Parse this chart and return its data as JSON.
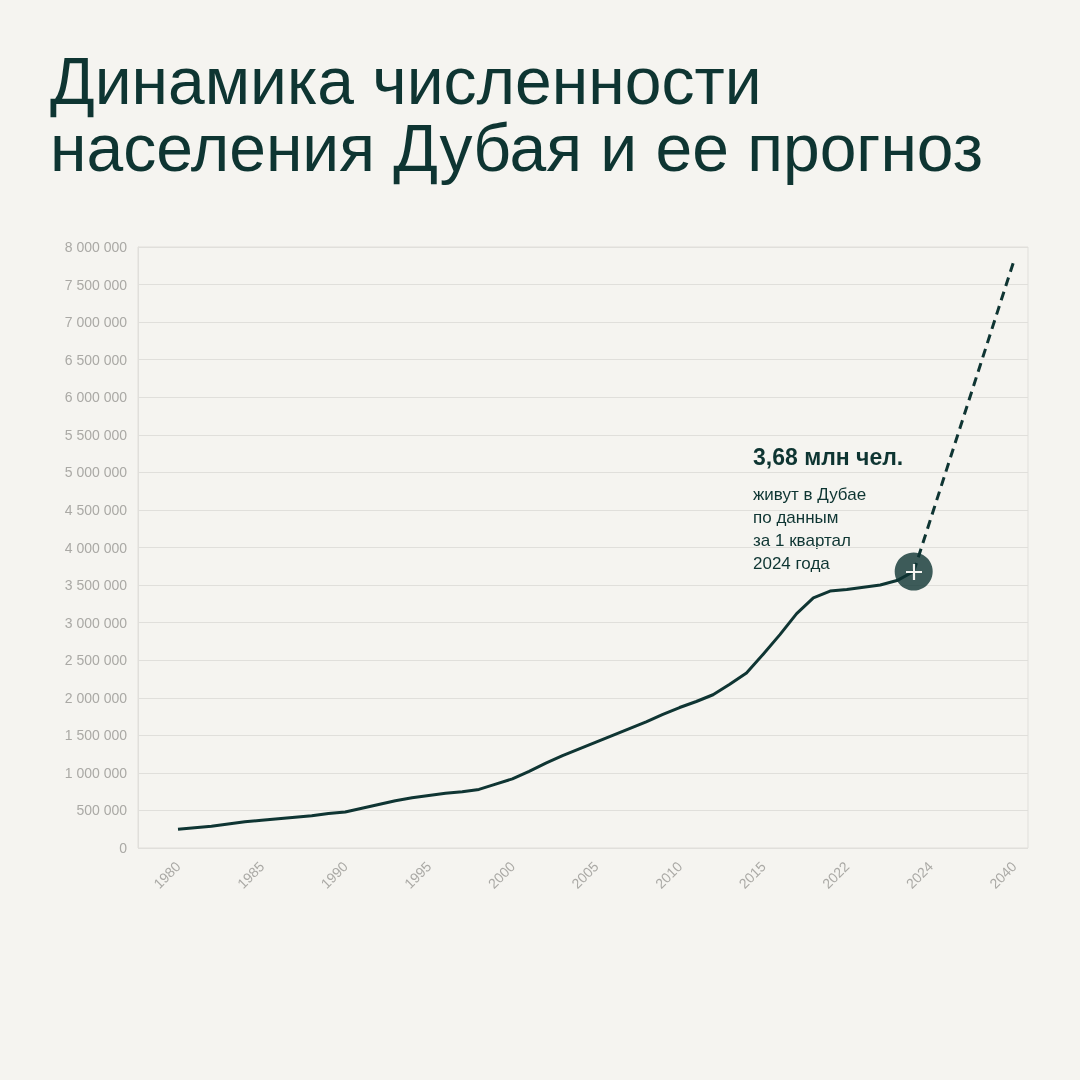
{
  "chart_data": {
    "type": "line",
    "title": "Динамика численности населения Дубая и ее прогноз",
    "categories": [
      "1980",
      null,
      null,
      null,
      null,
      "1985",
      null,
      null,
      null,
      null,
      "1990",
      null,
      null,
      null,
      null,
      "1995",
      null,
      null,
      null,
      null,
      "2000",
      null,
      null,
      null,
      null,
      "2005",
      null,
      null,
      null,
      null,
      "2010",
      null,
      null,
      null,
      null,
      "2015",
      null,
      null,
      null,
      null,
      "2022",
      null,
      null,
      null,
      null,
      "2024",
      null,
      null,
      null,
      null,
      "2040"
    ],
    "series": [
      {
        "color": "#0f3533",
        "values": [
          250000,
          270000,
          290000,
          320000,
          350000,
          370000,
          390000,
          410000,
          430000,
          460000,
          480000,
          530000,
          580000,
          630000,
          670000,
          700000,
          730000,
          750000,
          780000,
          850000,
          920000,
          1020000,
          1130000,
          1230000,
          1320000,
          1410000,
          1500000,
          1590000,
          1680000,
          1780000,
          1870000,
          1950000,
          2040000,
          2180000,
          2330000,
          2580000,
          2840000,
          3120000,
          3330000,
          3420000,
          3440000,
          3470000,
          3500000,
          3560000,
          3680000,
          null,
          null,
          null,
          null,
          null,
          null
        ]
      },
      {
        "color": "#0f3533",
        "line_style": "dashed",
        "values": [
          null,
          null,
          null,
          null,
          null,
          null,
          null,
          null,
          null,
          null,
          null,
          null,
          null,
          null,
          null,
          null,
          null,
          null,
          null,
          null,
          null,
          null,
          null,
          null,
          null,
          null,
          null,
          null,
          null,
          null,
          null,
          null,
          null,
          null,
          null,
          null,
          null,
          null,
          null,
          null,
          null,
          null,
          null,
          null,
          3680000,
          4370000,
          5060000,
          5750000,
          6440000,
          7130000,
          7820000
        ]
      },
      {
        "type": "scatter",
        "color": "#0f3533",
        "marker": "circle",
        "values": [
          null,
          null,
          null,
          null,
          null,
          null,
          null,
          null,
          null,
          null,
          null,
          null,
          null,
          null,
          null,
          null,
          null,
          null,
          null,
          null,
          null,
          null,
          null,
          null,
          null,
          null,
          null,
          null,
          null,
          null,
          null,
          null,
          null,
          null,
          null,
          null,
          null,
          null,
          null,
          null,
          null,
          null,
          null,
          null,
          3680000,
          null,
          null,
          null,
          null,
          null,
          null
        ]
      }
    ],
    "ylim": [
      0,
      8000000
    ],
    "yticks": [
      0,
      {
        "value": 500000,
        "label": "500 000"
      },
      {
        "value": 1000000,
        "label": "1 000 000"
      },
      {
        "value": 1500000,
        "label": "1 500 000"
      },
      {
        "value": 2000000,
        "label": "2 000 000"
      },
      {
        "value": 2500000,
        "label": "2 500 000"
      },
      {
        "value": 3000000,
        "label": "3 000 000"
      },
      {
        "value": 3500000,
        "label": "3 500 000"
      },
      {
        "value": 4000000,
        "label": "4 000 000"
      },
      {
        "value": 4500000,
        "label": "4 500 000"
      },
      {
        "value": 5000000,
        "label": "5 000 000"
      },
      {
        "value": 5500000,
        "label": "5 500 000"
      },
      {
        "value": 6000000,
        "label": "6 000 000"
      },
      {
        "value": 6500000,
        "label": "6 500 000"
      },
      {
        "value": 7000000,
        "label": "7 000 000"
      },
      {
        "value": 7500000,
        "label": "7 500 000"
      },
      {
        "value": 8000000,
        "label": "8 000 000"
      }
    ],
    "grid": "y",
    "marker": "none",
    "annotations": [
      "3,68 млн чел.",
      "живут в Дубае\nпо данным\nза 1 квартал\n2024 года"
    ]
  }
}
